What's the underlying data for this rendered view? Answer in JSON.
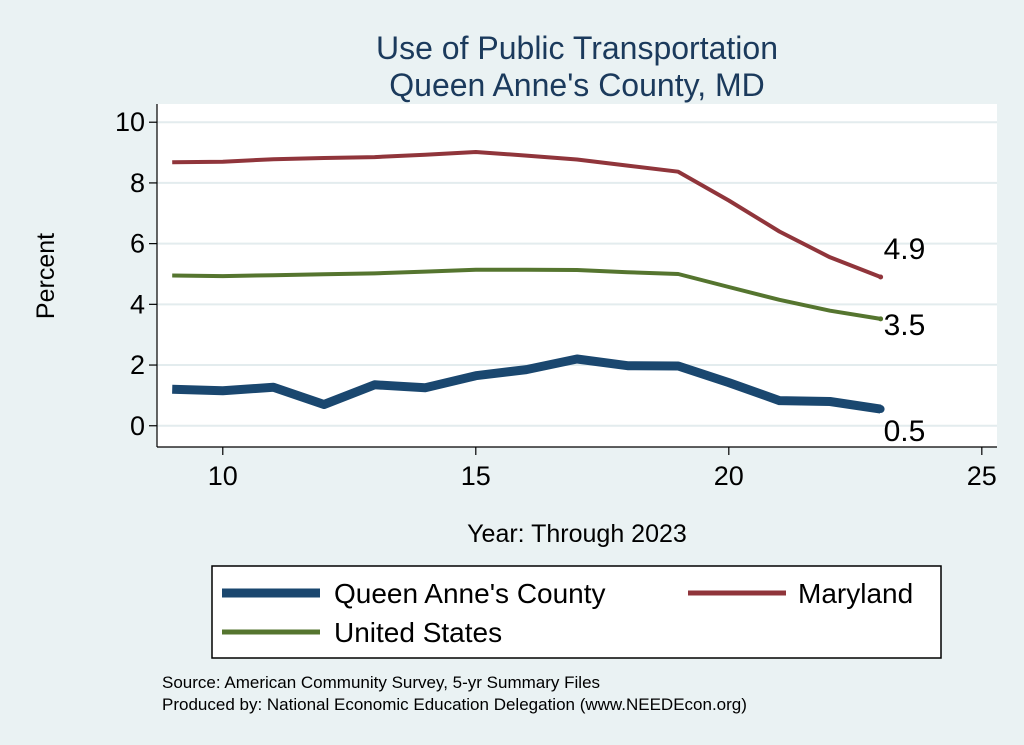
{
  "chart_data": {
    "type": "line",
    "title": [
      "Use of Public Transportation",
      "Queen Anne's County, MD"
    ],
    "xlabel": "Year: Through 2023",
    "ylabel": "Percent",
    "xlim": [
      8.7,
      25.3
    ],
    "ylim": [
      -0.7,
      10.6
    ],
    "xticks": [
      10,
      15,
      20,
      25
    ],
    "yticks": [
      0,
      2,
      4,
      6,
      8,
      10
    ],
    "grid": true,
    "legend": "bottom",
    "series": [
      {
        "name": "Queen Anne's County",
        "color": "#1a476f",
        "width": 9,
        "x": [
          9,
          10,
          11,
          12,
          13,
          14,
          15,
          16,
          17,
          18,
          19,
          20,
          21,
          22,
          23
        ],
        "y": [
          1.2,
          1.15,
          1.27,
          0.7,
          1.35,
          1.25,
          1.65,
          1.85,
          2.2,
          1.98,
          1.97,
          1.42,
          0.83,
          0.8,
          0.55
        ],
        "end_label": "0.5"
      },
      {
        "name": "Maryland",
        "color": "#90353b",
        "width": 4,
        "x": [
          9,
          10,
          11,
          12,
          13,
          14,
          15,
          16,
          17,
          18,
          19,
          20,
          21,
          22,
          23
        ],
        "y": [
          8.68,
          8.7,
          8.78,
          8.82,
          8.85,
          8.93,
          9.02,
          8.9,
          8.77,
          8.57,
          8.37,
          7.42,
          6.4,
          5.55,
          4.9
        ],
        "end_label": "4.9"
      },
      {
        "name": "United States",
        "color": "#55752f",
        "width": 4,
        "x": [
          9,
          10,
          11,
          12,
          13,
          14,
          15,
          16,
          17,
          18,
          19,
          20,
          21,
          22,
          23
        ],
        "y": [
          4.95,
          4.93,
          4.96,
          4.99,
          5.02,
          5.08,
          5.14,
          5.14,
          5.13,
          5.06,
          5.0,
          4.57,
          4.15,
          3.79,
          3.52
        ],
        "end_label": "3.5"
      }
    ],
    "notes": [
      "Source: American Community Survey, 5-yr Summary Files",
      "Produced by: National Economic Education Delegation (www.NEEDEcon.org)"
    ]
  }
}
